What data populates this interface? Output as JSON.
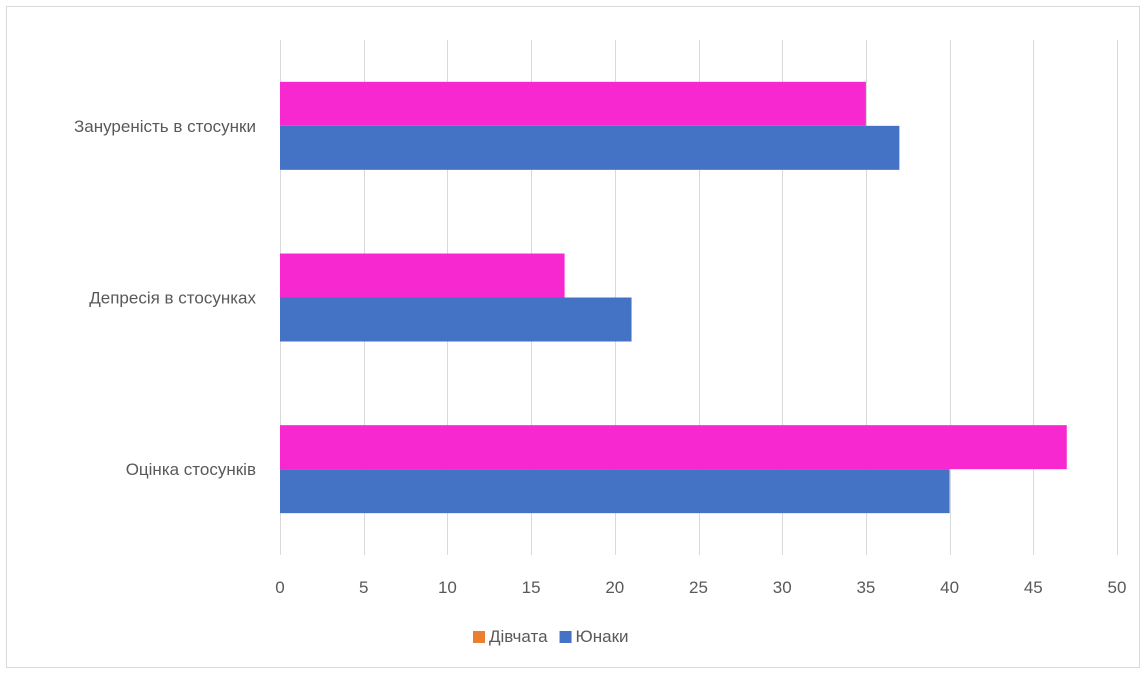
{
  "chart_data": {
    "type": "bar",
    "orientation": "horizontal",
    "categories": [
      "Зануреність в стосунки",
      "Депресія в стосунках",
      "Оцінка стосунків"
    ],
    "series": [
      {
        "name": "Дівчата",
        "values": [
          35,
          17,
          47
        ],
        "bar_color": "#f828d0",
        "legend_color": "#ed7d31"
      },
      {
        "name": "Юнаки",
        "values": [
          37,
          21,
          40
        ],
        "bar_color": "#4472c4",
        "legend_color": "#4472c4"
      }
    ],
    "xlim": [
      0,
      50
    ],
    "x_ticks": [
      0,
      5,
      10,
      15,
      20,
      25,
      30,
      35,
      40,
      45,
      50
    ],
    "gridlines": true,
    "legend_position": "bottom",
    "title": "",
    "xlabel": "",
    "ylabel": ""
  }
}
